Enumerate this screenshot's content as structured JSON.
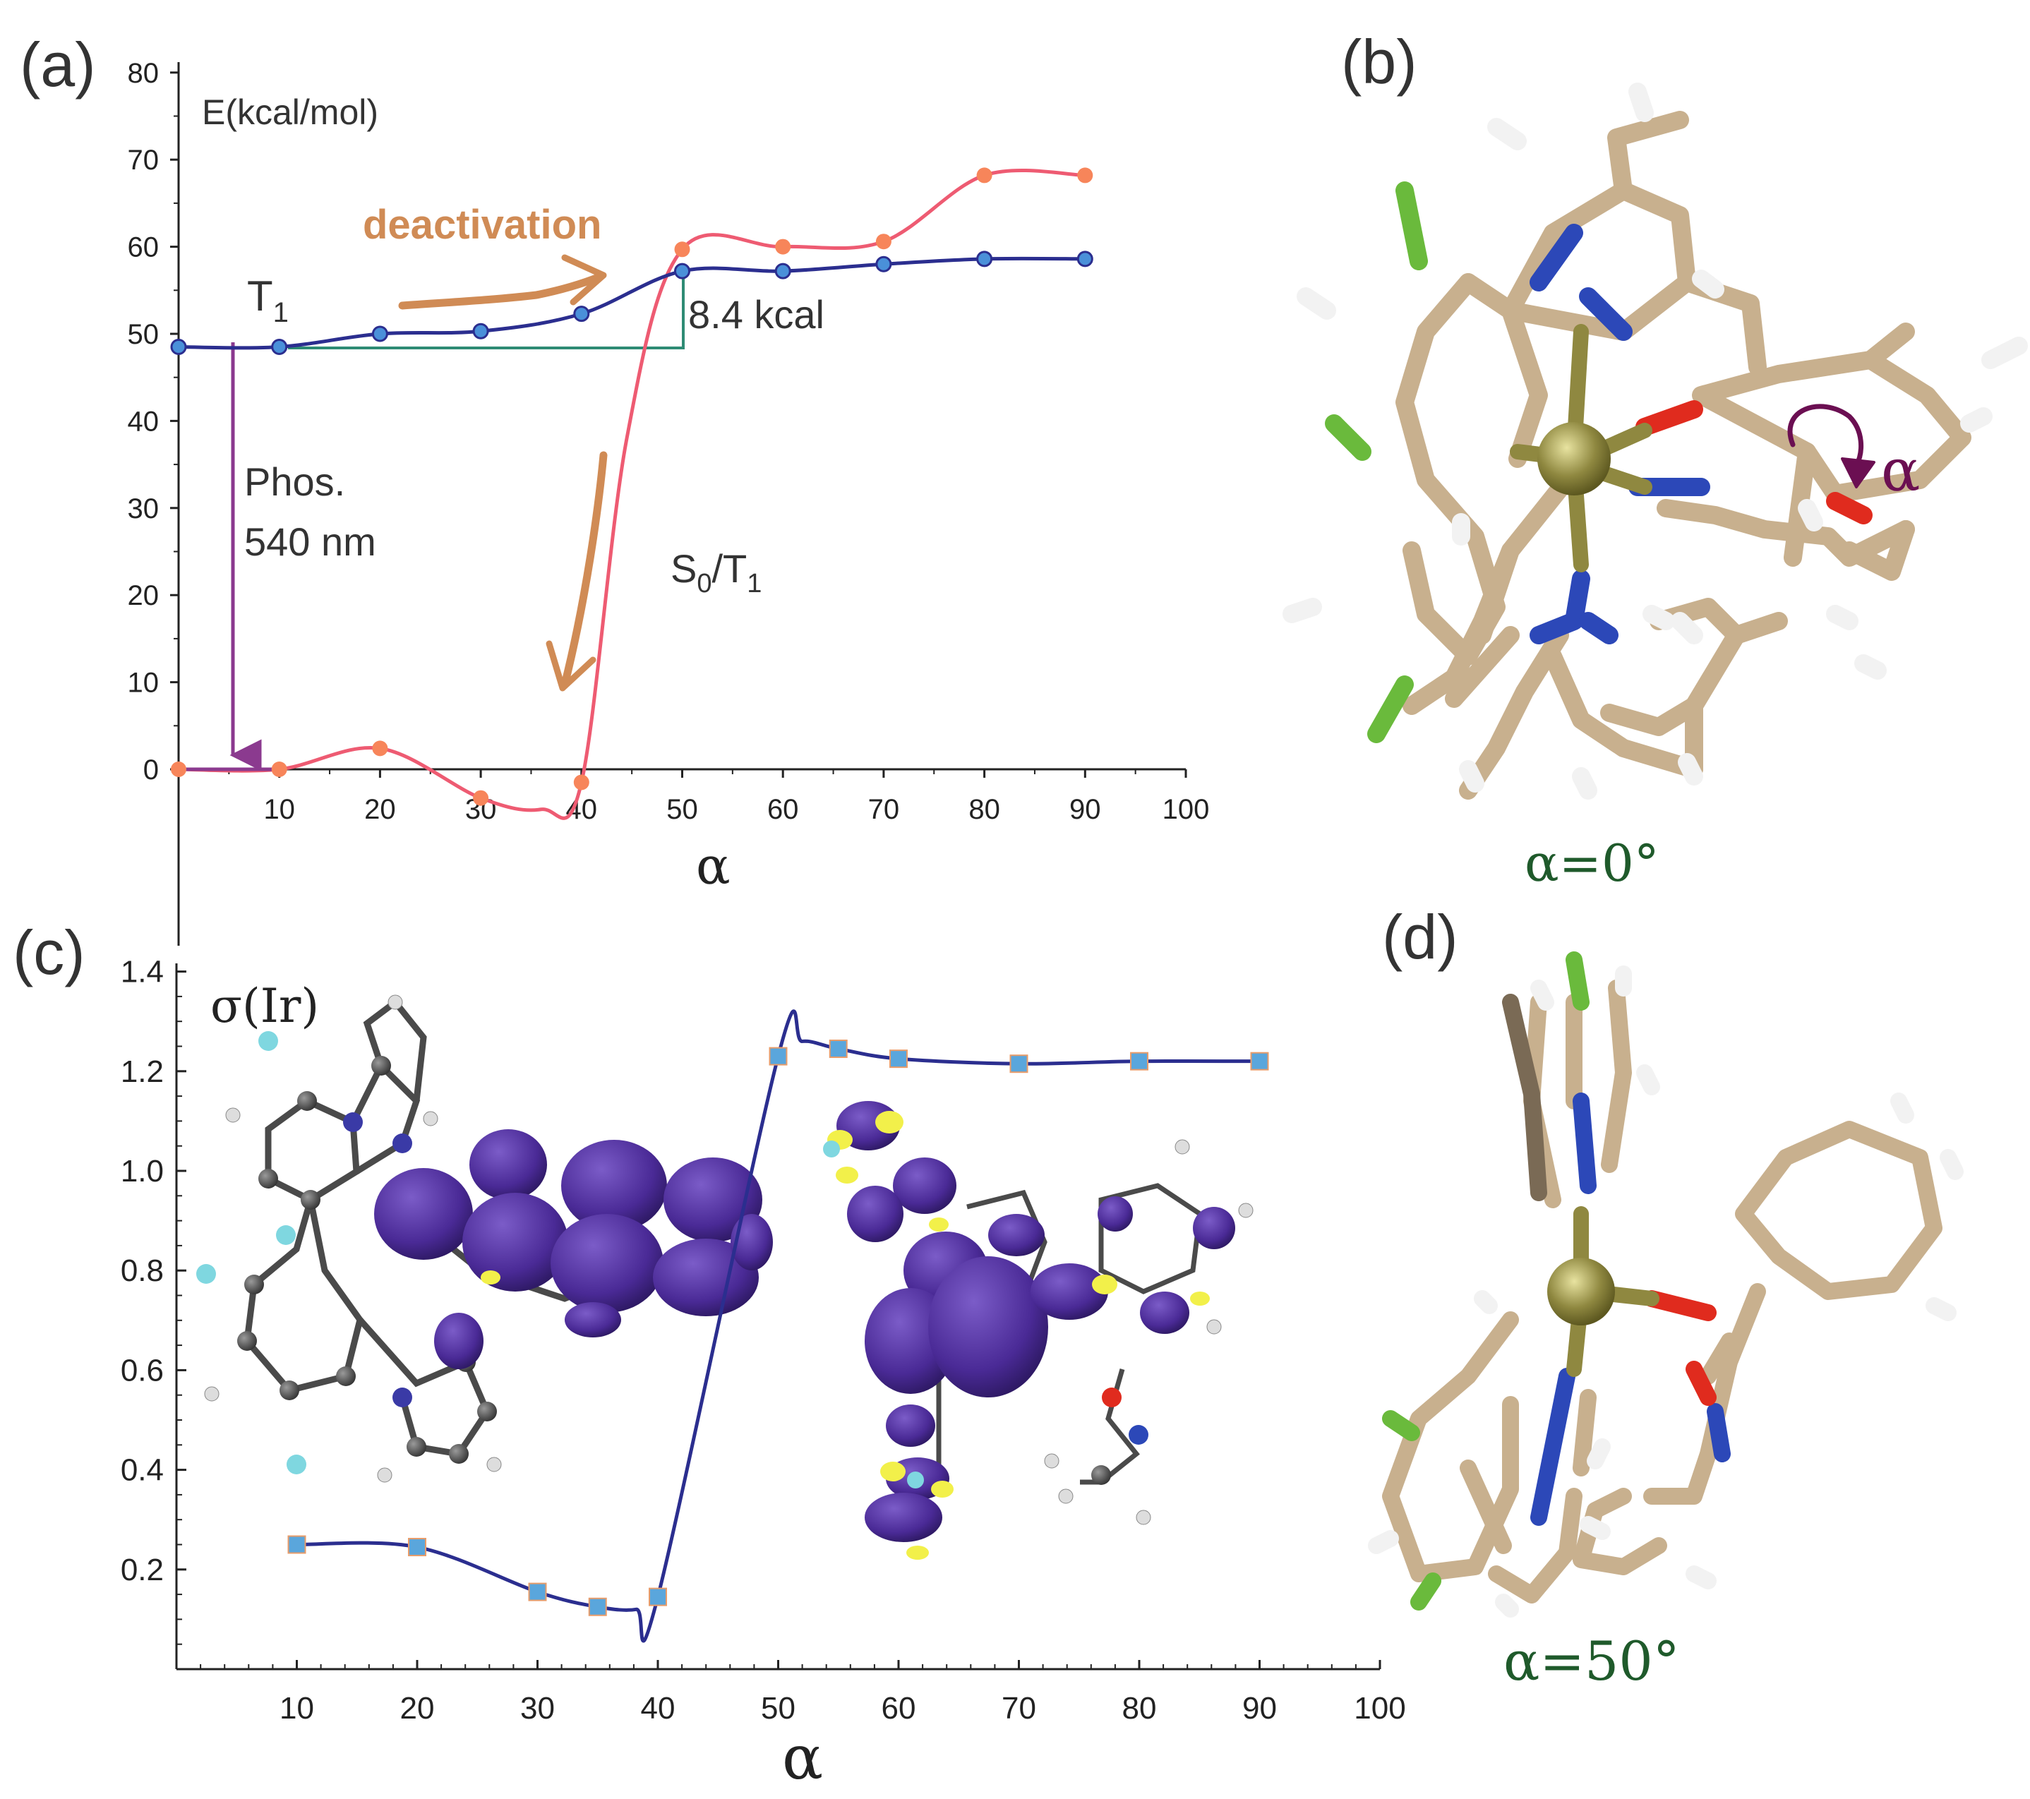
{
  "panel_labels": {
    "a": "(a)",
    "b": "(b)",
    "c": "(c)",
    "d": "(d)"
  },
  "colors": {
    "t1": "#2b2e8f",
    "s0t1": "#ee5b72",
    "s0t1_marker": "#f7855a",
    "t1_marker": "#4a90d9",
    "phos_arrow": "#8b3a8f",
    "deact_arrow": "#d08b55",
    "barrier_line": "#2e8b74",
    "sigma_line": "#2b2e8f",
    "sigma_marker": "#5aa6dc",
    "angle_label": "#1f5a2b",
    "mol_carbon": "#c8b08e",
    "mol_nitrogen": "#2c48b8",
    "mol_oxygen": "#e02b1e",
    "mol_fluorine": "#6aba3c",
    "mol_iridium": "#8f8840",
    "orbital": "#4a2a96",
    "orbital_yellow": "#f2f04a"
  },
  "annotations": {
    "ylabel_a": "E(kcal/mol)",
    "t1_label": "T",
    "t1_sub": "1",
    "deactivation": "deactivation",
    "barrier": "8.4 kcal",
    "phos_line1": "Phos.",
    "phos_line2": "540 nm",
    "s0t1_main": "S",
    "s0t1_sub0": "0",
    "s0t1_mid": "/T",
    "s0t1_sub1": "1",
    "xlabel_a": "α",
    "ylabel_c": "σ(Ir)",
    "xlabel_c": "α",
    "alpha_rot": "α",
    "angle_b": "α=0°",
    "angle_d": "α=50°"
  },
  "chart_data": [
    {
      "panel": "a",
      "type": "line",
      "ylabel": "E(kcal/mol)",
      "xlabel": "α",
      "xlim": [
        0,
        100
      ],
      "ylim": [
        -10,
        80
      ],
      "xticks": [
        10,
        20,
        30,
        40,
        50,
        60,
        70,
        80,
        90,
        100
      ],
      "yticks": [
        0,
        10,
        20,
        30,
        40,
        50,
        60,
        70,
        80
      ],
      "series": [
        {
          "name": "T1",
          "x": [
            0,
            10,
            20,
            30,
            40,
            50,
            60,
            70,
            80,
            90
          ],
          "y": [
            48.5,
            48.5,
            50.0,
            50.3,
            52.3,
            57.2,
            57.2,
            58.0,
            58.6,
            58.6
          ]
        },
        {
          "name": "S0/T1",
          "x": [
            0,
            10,
            20,
            30,
            40,
            50,
            60,
            70,
            80,
            90
          ],
          "y": [
            0.0,
            0.0,
            2.4,
            -3.3,
            -1.5,
            59.7,
            60.0,
            60.6,
            68.2,
            68.2
          ]
        }
      ]
    },
    {
      "panel": "c",
      "type": "line",
      "ylabel": "σ(Ir)",
      "xlabel": "α",
      "xlim": [
        0,
        100
      ],
      "ylim": [
        0,
        1.4
      ],
      "xticks": [
        10,
        20,
        30,
        40,
        50,
        60,
        70,
        80,
        90,
        100
      ],
      "yticks": [
        "0.2",
        "0.4",
        "0.6",
        "0.8",
        "1.0",
        "1.2",
        "1.4"
      ],
      "series": [
        {
          "x": [
            10,
            20,
            30,
            35,
            40,
            50,
            55,
            60,
            70,
            80,
            90
          ],
          "y": [
            0.25,
            0.245,
            0.155,
            0.125,
            0.145,
            1.23,
            1.245,
            1.225,
            1.215,
            1.22,
            1.22
          ]
        }
      ]
    }
  ]
}
